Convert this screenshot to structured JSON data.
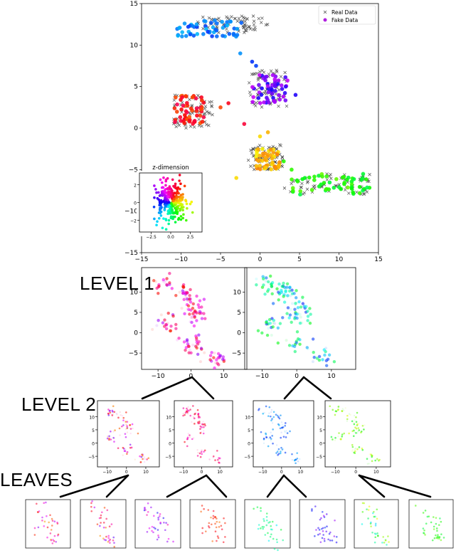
{
  "labels": {
    "level1": "LEVEL 1",
    "level2": "LEVEL 2",
    "leaves": "LEAVES"
  },
  "chart_data": [
    {
      "id": "main",
      "type": "scatter",
      "title": "",
      "xlabel": "",
      "ylabel": "",
      "xlim": [
        -15,
        15
      ],
      "ylim": [
        -15,
        15
      ],
      "x_ticks": [
        -15,
        -10,
        -5,
        0,
        5,
        10,
        15
      ],
      "y_ticks": [
        -15,
        -10,
        -5,
        0,
        5,
        10,
        15
      ],
      "legend": {
        "placement": "top-right",
        "entries": [
          {
            "name": "Real Data",
            "marker": "x",
            "color": "#555555"
          },
          {
            "name": "Fake Data",
            "marker": "o",
            "color": "#b020e0"
          }
        ]
      },
      "series": [
        {
          "name": "Real Data",
          "clusters": [
            {
              "x": [
                -8,
                1
              ],
              "y": [
                11.5,
                13.5
              ]
            },
            {
              "x": [
                -1.5,
                3.5
              ],
              "y": [
                2.5,
                7
              ]
            },
            {
              "x": [
                -11,
                -6
              ],
              "y": [
                0,
                4
              ]
            },
            {
              "x": [
                -1.5,
                3
              ],
              "y": [
                -5,
                -2
              ]
            },
            {
              "x": [
                3,
                14
              ],
              "y": [
                -8,
                -5.5
              ]
            }
          ]
        },
        {
          "name": "Fake Data",
          "clusters": [
            {
              "x": [
                -10.5,
                -2
              ],
              "y": [
                11,
                13
              ],
              "hue": "blue-cyan"
            },
            {
              "x": [
                -1,
                3.5
              ],
              "y": [
                3,
                6.5
              ],
              "hue": "purple-blue"
            },
            {
              "x": [
                -11,
                -7
              ],
              "y": [
                0.5,
                4
              ],
              "hue": "red-orange-pink"
            },
            {
              "x": [
                -0.5,
                2.5
              ],
              "y": [
                -5,
                -2.5
              ],
              "hue": "yellow-orange"
            },
            {
              "x": [
                4,
                14
              ],
              "y": [
                -8,
                -5.5
              ],
              "hue": "green"
            }
          ]
        }
      ]
    },
    {
      "id": "inset",
      "type": "scatter",
      "title": "z-dimension",
      "xlim": [
        -4,
        4
      ],
      "ylim": [
        -3.3,
        3.3
      ],
      "x_ticks": [
        -2.5,
        0.0,
        2.5
      ],
      "x_tick_labels": [
        "−2.5",
        "0.0",
        "2.5"
      ],
      "y_ticks": [
        -2,
        0,
        2
      ],
      "y_tick_labels": [
        "−2",
        "0",
        "2"
      ],
      "series": [
        {
          "name": "",
          "distribution": "standard normal 2D",
          "points": 300,
          "color_by": "angle"
        }
      ]
    },
    {
      "id": "level1-a",
      "type": "scatter",
      "xlim": [
        -15,
        17
      ],
      "ylim": [
        -9,
        16
      ],
      "x_ticks": [
        -10,
        0,
        10
      ],
      "y_ticks": [
        -5,
        0,
        5,
        10
      ],
      "hue": "pink-red-purple"
    },
    {
      "id": "level1-b",
      "type": "scatter",
      "xlim": [
        -15,
        17
      ],
      "ylim": [
        -9,
        16
      ],
      "x_ticks": [
        -10,
        0,
        10
      ],
      "y_ticks": [
        -5,
        0,
        5,
        10
      ],
      "hue": "blue-cyan-green"
    },
    {
      "id": "level2-a",
      "type": "scatter",
      "xlim": [
        -15,
        17
      ],
      "ylim": [
        -9,
        16
      ],
      "x_ticks": [
        -10,
        0,
        10
      ],
      "y_ticks": [
        -5,
        0,
        5,
        10
      ],
      "hue": "purple-orange"
    },
    {
      "id": "level2-b",
      "type": "scatter",
      "xlim": [
        -15,
        17
      ],
      "ylim": [
        -9,
        16
      ],
      "x_ticks": [
        -10,
        0,
        10
      ],
      "y_ticks": [
        -5,
        0,
        5,
        10
      ],
      "hue": "pink-red"
    },
    {
      "id": "level2-c",
      "type": "scatter",
      "xlim": [
        -15,
        17
      ],
      "ylim": [
        -9,
        16
      ],
      "x_ticks": [
        -10,
        0,
        10
      ],
      "y_ticks": [
        -5,
        0,
        5,
        10
      ],
      "hue": "blue-cyan"
    },
    {
      "id": "level2-d",
      "type": "scatter",
      "xlim": [
        -15,
        17
      ],
      "ylim": [
        -9,
        16
      ],
      "x_ticks": [
        -10,
        0,
        10
      ],
      "y_ticks": [
        -5,
        0,
        5,
        10
      ],
      "hue": "green-yellow"
    },
    {
      "id": "leaf-1",
      "type": "scatter",
      "hue": "orange-purple"
    },
    {
      "id": "leaf-2",
      "type": "scatter",
      "hue": "purple-orange"
    },
    {
      "id": "leaf-3",
      "type": "scatter",
      "hue": "magenta-blue"
    },
    {
      "id": "leaf-4",
      "type": "scatter",
      "hue": "red-orange"
    },
    {
      "id": "leaf-5",
      "type": "scatter",
      "hue": "cyan-green"
    },
    {
      "id": "leaf-6",
      "type": "scatter",
      "hue": "blue-purple"
    },
    {
      "id": "leaf-7",
      "type": "scatter",
      "hue": "cyan-yellow"
    },
    {
      "id": "leaf-8",
      "type": "scatter",
      "hue": "green"
    }
  ]
}
